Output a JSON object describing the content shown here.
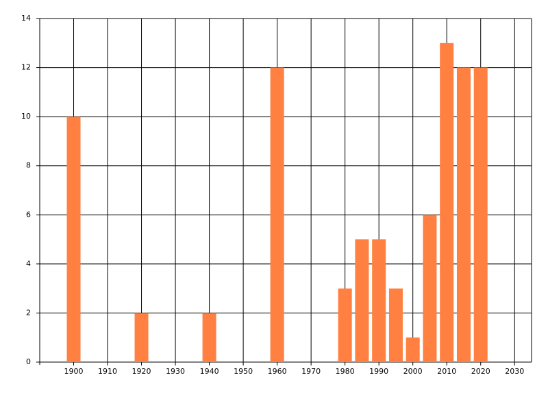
{
  "chart_data": {
    "type": "bar",
    "x": [
      1900,
      1920,
      1940,
      1960,
      1980,
      1985,
      1990,
      1995,
      2000,
      2005,
      2010,
      2015,
      2020
    ],
    "values": [
      10,
      2,
      2,
      12,
      3,
      5,
      5,
      3,
      1,
      6,
      13,
      12,
      12
    ],
    "color": "#ff8040",
    "xlim": [
      1890,
      2035
    ],
    "xticks": [
      1900,
      1910,
      1920,
      1930,
      1940,
      1950,
      1960,
      1970,
      1980,
      1990,
      2000,
      2010,
      2020,
      2030
    ],
    "ylim": [
      0,
      14
    ],
    "yticks": [
      0,
      2,
      4,
      6,
      8,
      10,
      12,
      14
    ],
    "grid": true
  }
}
